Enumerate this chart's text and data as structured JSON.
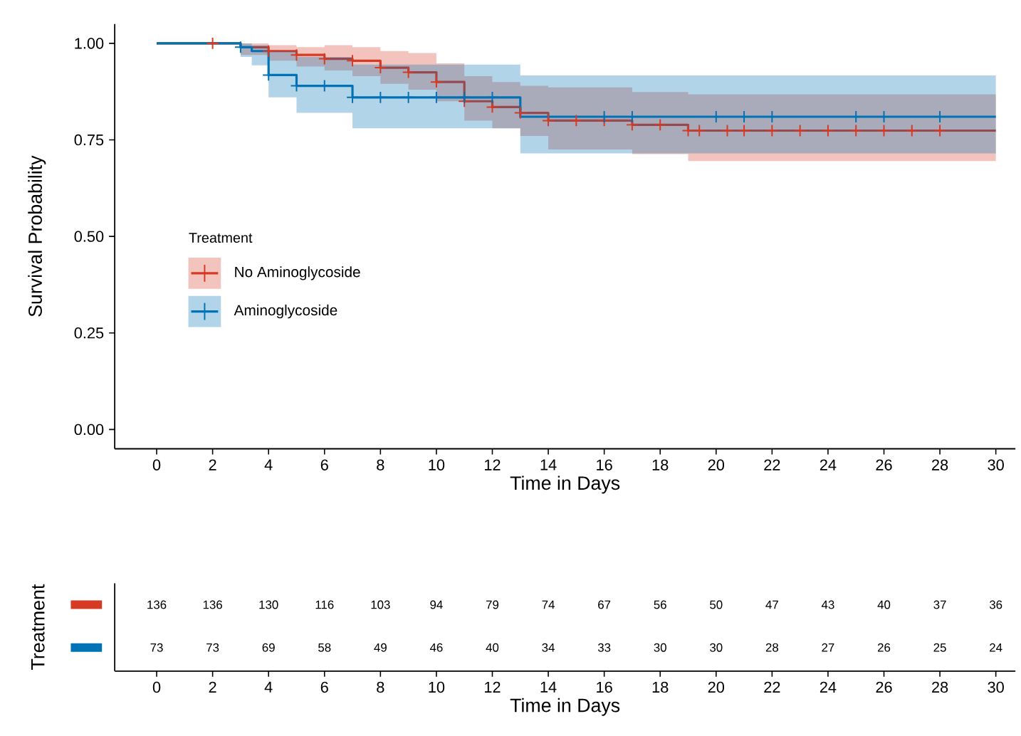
{
  "chart_data": [
    {
      "type": "step",
      "xlabel": "Time in Days",
      "ylabel": "Survival Probability",
      "legend_title": "Treatment",
      "legend": "left",
      "xlim": [
        -1.5,
        30.7
      ],
      "ylim": [
        -0.05,
        1.05
      ],
      "xticks": [
        0,
        2,
        4,
        6,
        8,
        10,
        12,
        14,
        16,
        18,
        20,
        22,
        24,
        26,
        28,
        30
      ],
      "yticks": [
        {
          "value": 0,
          "label": "0.00"
        },
        {
          "value": 0.25,
          "label": "0.25"
        },
        {
          "value": 0.5,
          "label": "0.50"
        },
        {
          "value": 0.75,
          "label": "0.75"
        },
        {
          "value": 1,
          "label": "1.00"
        }
      ],
      "series": [
        {
          "name": "No Aminoglycoside",
          "type": "step",
          "color": "#d63a24",
          "x": [
            0,
            3,
            4,
            5,
            6,
            7,
            8,
            9,
            10,
            11,
            12,
            13,
            14,
            17,
            19,
            30
          ],
          "values": [
            1,
            0.99,
            0.98,
            0.97,
            0.96,
            0.955,
            0.937,
            0.925,
            0.9,
            0.85,
            0.835,
            0.82,
            0.8,
            0.789,
            0.774,
            0.774
          ],
          "lower": [
            1,
            0.97,
            0.955,
            0.94,
            0.93,
            0.915,
            0.895,
            0.88,
            0.85,
            0.8,
            0.78,
            0.76,
            0.725,
            0.713,
            0.695,
            0.695
          ],
          "upper": [
            1,
            1,
            0.995,
            0.99,
            0.995,
            0.99,
            0.98,
            0.975,
            0.948,
            0.915,
            0.9,
            0.89,
            0.886,
            0.874,
            0.868,
            0.868
          ]
        },
        {
          "name": "Aminoglycoside",
          "type": "step",
          "color": "#0072b5",
          "x": [
            0,
            3,
            3.4,
            4,
            5,
            7,
            13,
            30
          ],
          "values": [
            1,
            0.99,
            0.98,
            0.918,
            0.89,
            0.86,
            0.81,
            0.81
          ],
          "lower": [
            1,
            0.965,
            0.943,
            0.86,
            0.82,
            0.78,
            0.715,
            0.715
          ],
          "upper": [
            1,
            1,
            0.995,
            0.98,
            0.965,
            0.945,
            0.917,
            0.917
          ]
        },
        {
          "type": "scatter",
          "marker": "cross",
          "color": "#d63a24",
          "x": [
            2,
            4,
            5,
            6,
            7,
            8,
            9,
            10,
            11,
            12,
            13,
            14,
            15,
            16,
            17,
            18,
            19,
            19.4,
            20.4,
            21,
            22,
            23,
            24,
            25,
            26,
            27,
            28
          ],
          "values": [
            1,
            0.98,
            0.97,
            0.96,
            0.955,
            0.937,
            0.925,
            0.9,
            0.85,
            0.835,
            0.82,
            0.8,
            0.8,
            0.8,
            0.789,
            0.789,
            0.774,
            0.774,
            0.774,
            0.774,
            0.774,
            0.774,
            0.774,
            0.774,
            0.774,
            0.774,
            0.774
          ]
        },
        {
          "type": "scatter",
          "marker": "cross",
          "color": "#0072b5",
          "x": [
            3,
            4,
            5,
            6,
            7,
            8,
            9,
            10,
            11,
            12,
            16,
            17,
            20,
            21,
            22,
            25,
            26,
            28
          ],
          "values": [
            0.99,
            0.918,
            0.89,
            0.89,
            0.86,
            0.86,
            0.86,
            0.86,
            0.86,
            0.86,
            0.81,
            0.81,
            0.81,
            0.81,
            0.81,
            0.81,
            0.81,
            0.81
          ]
        }
      ]
    },
    {
      "type": "heatmap",
      "xlabel": "Time in Days",
      "ylabel": "Treatment",
      "data_labels": true,
      "categories": [
        "0",
        "2",
        "4",
        "6",
        "8",
        "10",
        "12",
        "14",
        "16",
        "18",
        "20",
        "22",
        "24",
        "26",
        "28",
        "30"
      ],
      "y_categories": [
        null,
        null
      ],
      "colors": [
        "#d63a24",
        "#0072b5"
      ],
      "cells": [
        [
          136,
          136,
          130,
          116,
          103,
          94,
          79,
          74,
          67,
          56,
          50,
          47,
          43,
          40,
          37,
          36
        ],
        [
          73,
          73,
          69,
          58,
          49,
          46,
          40,
          34,
          33,
          30,
          30,
          28,
          27,
          26,
          25,
          24
        ]
      ]
    }
  ]
}
